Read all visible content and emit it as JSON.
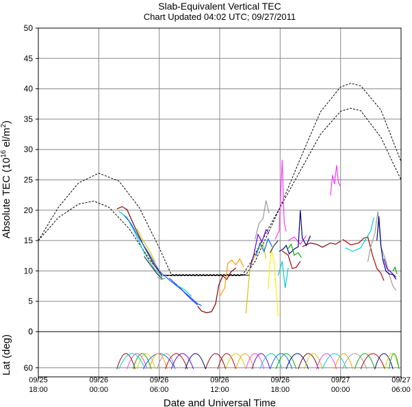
{
  "chart_data": {
    "type": "line",
    "title": "Slab-Equivalent Vertical TEC",
    "subtitle": "Chart Updated 04:02 UTC; 09/27/2011",
    "xlabel": "Date and Universal Time",
    "ylabel": "Absolute TEC (10",
    "ylabel_sup": "16",
    "ylabel_mid": " el/m",
    "ylabel_sup2": "2",
    "ylabel_end": ")",
    "x_unit": "hours since 09/25 18:00 UTC",
    "xlim": [
      0,
      36
    ],
    "ylim": [
      0,
      50
    ],
    "y_ticks": [
      0,
      5,
      10,
      15,
      20,
      25,
      30,
      35,
      40,
      45,
      50
    ],
    "x_ticks": [
      {
        "x": 0,
        "date": "09/25",
        "time": "18:00"
      },
      {
        "x": 6,
        "date": "09/26",
        "time": "00:00"
      },
      {
        "x": 12,
        "date": "09/26",
        "time": "06:00"
      },
      {
        "x": 18,
        "date": "09/26",
        "time": "12:00"
      },
      {
        "x": 24,
        "date": "09/26",
        "time": "18:00"
      },
      {
        "x": 30,
        "date": "09/27",
        "time": "00:00"
      },
      {
        "x": 36,
        "date": "09/27",
        "time": "06:00"
      }
    ],
    "grid": true,
    "envelope": [
      {
        "style": "dashed",
        "points": [
          [
            0,
            15.0
          ],
          [
            2,
            20.5
          ],
          [
            4,
            24.5
          ],
          [
            6,
            26.1
          ],
          [
            8,
            24.8
          ],
          [
            10,
            20.5
          ],
          [
            12,
            13.8
          ],
          [
            13.2,
            9.4
          ],
          [
            20.6,
            9.4
          ],
          [
            21.5,
            11.5
          ],
          [
            24,
            20.5
          ],
          [
            26,
            28.5
          ],
          [
            28,
            36.2
          ],
          [
            30,
            40.3
          ],
          [
            31,
            40.9
          ],
          [
            32,
            40.5
          ],
          [
            34,
            36.5
          ],
          [
            36,
            28.0
          ],
          [
            36.5,
            25.5
          ]
        ]
      },
      {
        "style": "dashed",
        "points": [
          [
            0,
            15.0
          ],
          [
            2,
            18.8
          ],
          [
            4,
            21.0
          ],
          [
            5.5,
            21.5
          ],
          [
            7,
            20.5
          ],
          [
            9,
            17.0
          ],
          [
            11,
            12.0
          ],
          [
            12.3,
            9.2
          ],
          [
            20.2,
            9.2
          ],
          [
            21,
            11.2
          ],
          [
            23,
            17.5
          ],
          [
            26,
            26.5
          ],
          [
            28,
            32.5
          ],
          [
            30,
            36.3
          ],
          [
            31,
            36.8
          ],
          [
            32,
            36.4
          ],
          [
            34,
            32.0
          ],
          [
            36,
            25.0
          ],
          [
            36.5,
            22.0
          ]
        ]
      },
      {
        "style": "solid",
        "points": [
          [
            12.5,
            9.3
          ],
          [
            21,
            9.3
          ]
        ]
      }
    ],
    "series": [
      {
        "color": "#7f0000",
        "values": [
          [
            7.8,
            20.2
          ],
          [
            8.3,
            20.6
          ],
          [
            8.8,
            20.1
          ],
          [
            9.5,
            17.5
          ],
          [
            10.5,
            14.0
          ],
          [
            11.5,
            11.0
          ],
          [
            12.3,
            9.2
          ]
        ]
      },
      {
        "color": "#7f0000",
        "values": [
          [
            15.8,
            4.2
          ],
          [
            16.2,
            3.4
          ],
          [
            16.7,
            3.1
          ],
          [
            17.2,
            3.3
          ],
          [
            17.6,
            4.6
          ],
          [
            17.9,
            7.6
          ],
          [
            18.3,
            9.2
          ],
          [
            18.7,
            8.6
          ],
          [
            19.1,
            9.8
          ],
          [
            19.6,
            10.5
          ]
        ]
      },
      {
        "color": "#7f0000",
        "values": [
          [
            26.2,
            14.0
          ],
          [
            27.0,
            14.6
          ],
          [
            27.6,
            14.4
          ],
          [
            28.2,
            13.9
          ],
          [
            29.0,
            14.6
          ],
          [
            29.5,
            14.4
          ],
          [
            30.0,
            14.9
          ]
        ]
      },
      {
        "color": "#b40000",
        "values": [
          [
            30.2,
            15.2
          ],
          [
            31.0,
            14.3
          ],
          [
            31.8,
            14.6
          ],
          [
            32.3,
            15.4
          ],
          [
            32.7,
            15.6
          ],
          [
            33.2,
            12.4
          ],
          [
            33.6,
            10.4
          ],
          [
            34.0,
            9.6
          ],
          [
            34.3,
            8.4
          ]
        ]
      },
      {
        "color": "#b40000",
        "values": [
          [
            24.2,
            13.3
          ],
          [
            24.8,
            12.6
          ],
          [
            25.2,
            10.4
          ],
          [
            25.6,
            10.6
          ],
          [
            26.0,
            11.6
          ]
        ]
      },
      {
        "color": "#ff9900",
        "values": [
          [
            18.0,
            5.8
          ],
          [
            18.5,
            7.2
          ],
          [
            18.8,
            11.2
          ],
          [
            19.2,
            11.8
          ],
          [
            19.6,
            11.0
          ],
          [
            20.0,
            12.0
          ],
          [
            20.4,
            10.6
          ]
        ]
      },
      {
        "color": "#cccc00",
        "values": [
          [
            20.6,
            3.0
          ],
          [
            21.0,
            10.4
          ],
          [
            21.4,
            12.2
          ],
          [
            21.8,
            13.4
          ],
          [
            22.3,
            14.6
          ],
          [
            22.6,
            12.0
          ]
        ]
      },
      {
        "color": "#ffee00",
        "values": [
          [
            22.8,
            7.0
          ],
          [
            23.1,
            13.6
          ],
          [
            23.4,
            11.5
          ],
          [
            23.8,
            2.5
          ]
        ]
      },
      {
        "color": "#999999",
        "values": [
          [
            11.8,
            9.0
          ],
          [
            12.2,
            8.6
          ],
          [
            12.6,
            8.8
          ]
        ]
      },
      {
        "color": "#999999",
        "values": [
          [
            21.5,
            15.2
          ],
          [
            21.9,
            17.8
          ],
          [
            22.3,
            18.6
          ],
          [
            22.6,
            21.6
          ],
          [
            22.9,
            19.5
          ]
        ]
      },
      {
        "color": "#999999",
        "values": [
          [
            32.7,
            11.5
          ],
          [
            33.0,
            14.0
          ],
          [
            33.4,
            16.2
          ],
          [
            33.7,
            19.8
          ],
          [
            34.0,
            14.0
          ],
          [
            34.5,
            11.6
          ],
          [
            34.8,
            9.5
          ],
          [
            35.2,
            7.5
          ],
          [
            35.5,
            6.8
          ]
        ]
      },
      {
        "color": "#ff33ff",
        "values": [
          [
            23.5,
            15.2
          ],
          [
            23.9,
            16.6
          ],
          [
            24.2,
            28.3
          ],
          [
            24.4,
            18.0
          ],
          [
            24.6,
            16.5
          ]
        ]
      },
      {
        "color": "#ff33ff",
        "values": [
          [
            29.0,
            22.4
          ],
          [
            29.2,
            25.8
          ],
          [
            29.4,
            24.3
          ],
          [
            29.6,
            27.4
          ],
          [
            29.8,
            24.5
          ],
          [
            30.0,
            23.9
          ]
        ]
      },
      {
        "color": "#ff33ff",
        "values": [
          [
            24.8,
            15.0
          ],
          [
            25.4,
            15.6
          ],
          [
            26.0,
            14.4
          ],
          [
            26.6,
            15.8
          ]
        ]
      },
      {
        "color": "#00cccc",
        "values": [
          [
            8.0,
            19.8
          ],
          [
            8.8,
            18.8
          ],
          [
            9.5,
            16.6
          ],
          [
            10.5,
            13.0
          ],
          [
            11.5,
            10.4
          ],
          [
            12.3,
            9.0
          ]
        ]
      },
      {
        "color": "#00cccc",
        "values": [
          [
            23.8,
            9.2
          ],
          [
            24.2,
            11.6
          ],
          [
            24.5,
            7.2
          ],
          [
            24.8,
            10.5
          ]
        ]
      },
      {
        "color": "#00cccc",
        "values": [
          [
            30.5,
            13.8
          ],
          [
            31.2,
            13.2
          ],
          [
            32.0,
            13.8
          ],
          [
            32.6,
            15.5
          ],
          [
            33.0,
            16.6
          ],
          [
            33.3,
            18.8
          ]
        ]
      },
      {
        "color": "#0066ff",
        "values": [
          [
            8.5,
            19.2
          ],
          [
            9.2,
            17.8
          ],
          [
            10.0,
            15.4
          ],
          [
            11.0,
            12.8
          ],
          [
            12.0,
            10.0
          ],
          [
            13.0,
            8.5
          ],
          [
            14.0,
            7.2
          ],
          [
            15.0,
            5.8
          ],
          [
            15.8,
            4.6
          ],
          [
            16.2,
            4.3
          ]
        ]
      },
      {
        "color": "#0066ff",
        "values": [
          [
            21.6,
            12.4
          ],
          [
            22.0,
            14.6
          ],
          [
            22.4,
            13.2
          ],
          [
            22.8,
            15.3
          ],
          [
            23.2,
            14.0
          ]
        ]
      },
      {
        "color": "#3333ff",
        "values": [
          [
            13.0,
            8.8
          ],
          [
            14.0,
            7.3
          ],
          [
            15.0,
            5.6
          ],
          [
            15.8,
            4.4
          ]
        ]
      },
      {
        "color": "#000080",
        "values": [
          [
            23.9,
            13.2
          ],
          [
            24.3,
            13.6
          ],
          [
            24.6,
            14.2
          ],
          [
            24.9,
            12.8
          ],
          [
            25.4,
            13.6
          ],
          [
            25.8,
            14.0
          ],
          [
            26.0,
            20.0
          ],
          [
            26.2,
            15.4
          ],
          [
            26.6,
            14.2
          ],
          [
            27.0,
            15.8
          ]
        ]
      },
      {
        "color": "#000080",
        "values": [
          [
            33.6,
            15.0
          ],
          [
            33.8,
            19.0
          ],
          [
            34.0,
            14.2
          ],
          [
            34.2,
            11.8
          ],
          [
            34.5,
            10.0
          ],
          [
            34.8,
            9.5
          ],
          [
            35.2,
            9.4
          ],
          [
            35.5,
            8.6
          ]
        ]
      },
      {
        "color": "#00aa00",
        "values": [
          [
            24.7,
            13.5
          ],
          [
            25.1,
            14.4
          ],
          [
            25.4,
            12.6
          ],
          [
            25.8,
            13.0
          ],
          [
            26.1,
            12.2
          ]
        ]
      },
      {
        "color": "#00aa00",
        "values": [
          [
            35.2,
            10.0
          ],
          [
            35.4,
            10.6
          ],
          [
            35.6,
            9.5
          ]
        ]
      },
      {
        "color": "#6600cc",
        "values": [
          [
            21.0,
            10.5
          ],
          [
            21.4,
            12.8
          ],
          [
            21.8,
            16.0
          ],
          [
            22.2,
            14.8
          ],
          [
            22.6,
            16.8
          ],
          [
            22.9,
            16.2
          ]
        ]
      },
      {
        "color": "#6600cc",
        "values": [
          [
            34.3,
            12.0
          ],
          [
            34.6,
            10.4
          ],
          [
            35.0,
            9.8
          ],
          [
            35.5,
            9.0
          ]
        ]
      },
      {
        "color": "#333333",
        "values": [
          [
            10.5,
            12.4
          ],
          [
            11.2,
            10.8
          ],
          [
            11.8,
            9.5
          ],
          [
            12.3,
            8.7
          ]
        ]
      },
      {
        "color": "#333333",
        "values": [
          [
            23.0,
            13.0
          ],
          [
            23.4,
            14.2
          ],
          [
            23.8,
            15.0
          ]
        ]
      },
      {
        "color": "#cccc00",
        "values": [
          [
            9.8,
            17.0
          ],
          [
            10.4,
            15.0
          ],
          [
            11.0,
            13.4
          ],
          [
            11.6,
            11.5
          ]
        ]
      },
      {
        "color": "#00cccc",
        "values": [
          [
            13.8,
            7.6
          ],
          [
            14.6,
            6.8
          ],
          [
            15.2,
            5.8
          ]
        ]
      }
    ],
    "lat_panel": {
      "ylabel": "Lat (deg)",
      "ylim": [
        75,
        0
      ],
      "y_ticks": [
        0,
        60
      ],
      "tracks": [
        {
          "color": "#7f0000",
          "from": 7.8,
          "to": 9.6
        },
        {
          "color": "#ff33ff",
          "from": 8.8,
          "to": 10.8
        },
        {
          "color": "#00cccc",
          "from": 8.0,
          "to": 10.6
        },
        {
          "color": "#cccc00",
          "from": 9.8,
          "to": 11.6
        },
        {
          "color": "#00aa00",
          "from": 9.4,
          "to": 11.2
        },
        {
          "color": "#0066ff",
          "from": 10.4,
          "to": 13.6
        },
        {
          "color": "#999999",
          "from": 11.8,
          "to": 13.6
        },
        {
          "color": "#ff9900",
          "from": 11.0,
          "to": 12.8
        },
        {
          "color": "#b40000",
          "from": 12.6,
          "to": 14.8
        },
        {
          "color": "#6600cc",
          "from": 13.2,
          "to": 15.4
        },
        {
          "color": "#000080",
          "from": 14.6,
          "to": 16.6
        },
        {
          "color": "#7f0000",
          "from": 16.6,
          "to": 18.6
        },
        {
          "color": "#b40000",
          "from": 17.8,
          "to": 19.6
        },
        {
          "color": "#cccc00",
          "from": 18.6,
          "to": 20.6
        },
        {
          "color": "#ff9900",
          "from": 19.6,
          "to": 21.4
        },
        {
          "color": "#ff33ff",
          "from": 20.6,
          "to": 22.4
        },
        {
          "color": "#6600cc",
          "from": 21.2,
          "to": 23.0
        },
        {
          "color": "#00cccc",
          "from": 22.0,
          "to": 24.2
        },
        {
          "color": "#0066ff",
          "from": 23.0,
          "to": 25.2
        },
        {
          "color": "#00aa00",
          "from": 23.6,
          "to": 25.6
        },
        {
          "color": "#000080",
          "from": 24.6,
          "to": 26.8
        },
        {
          "color": "#7f0000",
          "from": 25.8,
          "to": 27.8
        },
        {
          "color": "#cccc00",
          "from": 26.4,
          "to": 28.2
        },
        {
          "color": "#ff33ff",
          "from": 27.6,
          "to": 29.6
        },
        {
          "color": "#00cccc",
          "from": 28.2,
          "to": 30.6
        },
        {
          "color": "#ff9900",
          "from": 29.4,
          "to": 31.2
        },
        {
          "color": "#999999",
          "from": 30.2,
          "to": 32.6
        },
        {
          "color": "#00aa00",
          "from": 31.4,
          "to": 33.4
        },
        {
          "color": "#b40000",
          "from": 32.0,
          "to": 34.4
        },
        {
          "color": "#000080",
          "from": 33.4,
          "to": 35.2
        },
        {
          "color": "#cccc00",
          "from": 34.4,
          "to": 35.8
        },
        {
          "color": "#00aa00",
          "from": 34.8,
          "to": 35.8
        }
      ]
    }
  }
}
